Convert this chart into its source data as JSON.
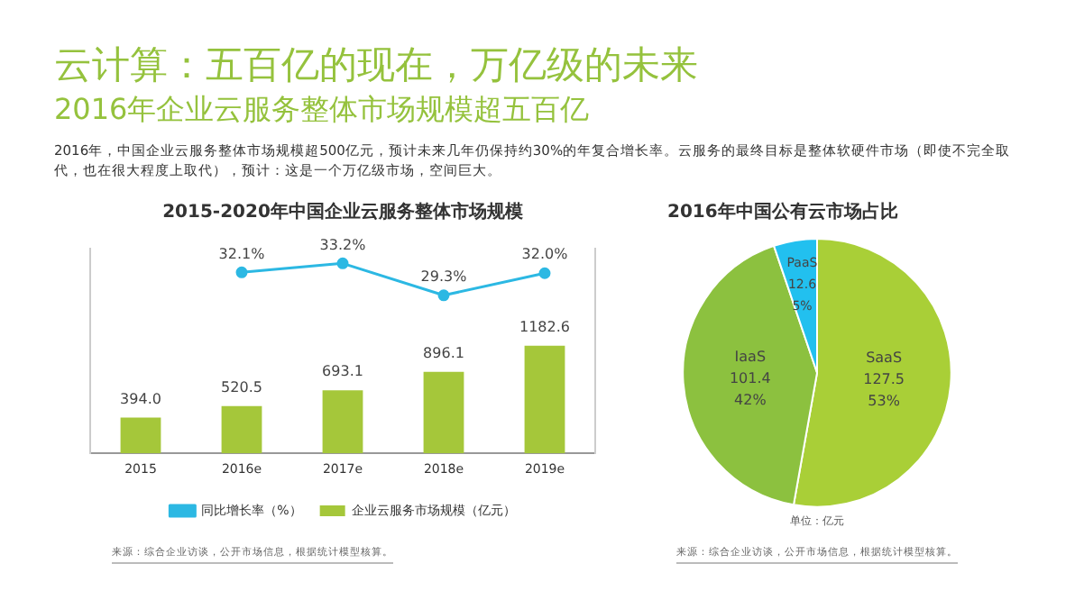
{
  "chart_data": [
    {
      "type": "other",
      "title": "云计算：五百亿的现在，万亿级的未来",
      "subtitle": "2016年企业云服务整体市场规模超五百亿",
      "annotations": [
        "2016年，中国企业云服务整体市场规模超500亿元，预计未来几年仍保持约30%的年复合增长率。云服务的最终目标是整体软硬件市场（即使不完全取代，也在很大程度上取代），预计：这是一个万亿级市场，空间巨大。"
      ]
    },
    {
      "type": "bar",
      "title": "2015-2020年中国企业云服务整体市场规模",
      "categories": [
        "2015",
        "2016e",
        "2017e",
        "2018e",
        "2019e"
      ],
      "legend": "bottom",
      "marker": "circle",
      "ylim": [
        0,
        2250
      ],
      "y2lim": [
        10,
        35
      ],
      "annotations": [
        "来源：综合企业访谈，公开市场信息，根据统计模型核算。"
      ],
      "series": [
        {
          "name": "企业云服务市场规模（亿元）",
          "type": "bar",
          "color": "#a5c73a",
          "values": [
            394.0,
            520.5,
            693.1,
            896.1,
            1182.6
          ],
          "value_labels": [
            "394.0",
            "520.5",
            "693.1",
            "896.1",
            "1182.6"
          ]
        },
        {
          "name": "同比增长率（%）",
          "type": "line",
          "axis": "y2",
          "color": "#2cb8e3",
          "values": [
            null,
            32.1,
            33.2,
            29.3,
            32.0
          ],
          "value_labels": [
            null,
            "32.1%",
            "33.2%",
            "29.3%",
            "32.0%"
          ]
        }
      ]
    },
    {
      "type": "pie",
      "title": "2016年中国公有云市场占比",
      "categories": [
        "SaaS",
        "IaaS",
        "PaaS"
      ],
      "values": [
        127.5,
        101.4,
        12.6
      ],
      "colors": [
        "#a9cf37",
        "#8cc13f",
        "#22c0ef"
      ],
      "value_labels": [
        "127.5\n53%",
        "101.4\n42%",
        "12.6\n5%"
      ],
      "legend": false,
      "annotations": [
        "单位：亿元",
        "来源：综合企业访谈，公开市场信息，根据统计模型核算。"
      ]
    }
  ]
}
